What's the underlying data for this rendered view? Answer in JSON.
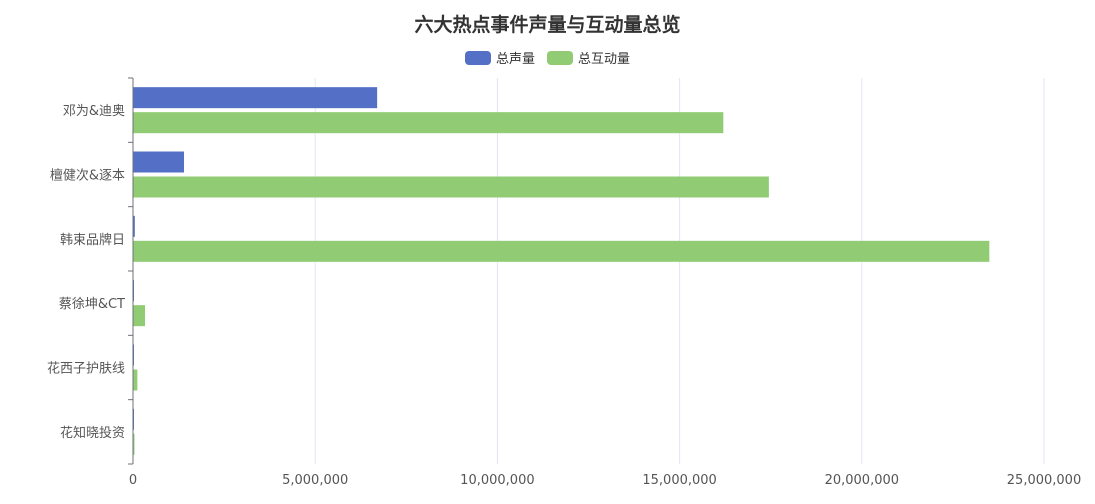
{
  "chart_data": {
    "type": "bar",
    "orientation": "horizontal",
    "title": "六大热点事件声量与互动量总览",
    "categories": [
      "邓为&迪奥",
      "檀健次&逐本",
      "韩束品牌日",
      "蔡徐坤&CT",
      "花西子护肤线",
      "花知晓投资"
    ],
    "series": [
      {
        "name": "总声量",
        "color": "#5470c6",
        "values": [
          6700000,
          1400000,
          50000,
          20000,
          10000,
          5000
        ]
      },
      {
        "name": "总互动量",
        "color": "#91cc75",
        "values": [
          16200000,
          17450000,
          23500000,
          330000,
          120000,
          40000
        ]
      }
    ],
    "xlim": [
      0,
      25000000
    ],
    "xticks": [
      "0",
      "5,000,000",
      "10,000,000",
      "15,000,000",
      "20,000,000",
      "25,000,000"
    ],
    "xtick_values": [
      0,
      5000000,
      10000000,
      15000000,
      20000000,
      25000000
    ],
    "legend": "top-center",
    "grid": "vertical"
  }
}
